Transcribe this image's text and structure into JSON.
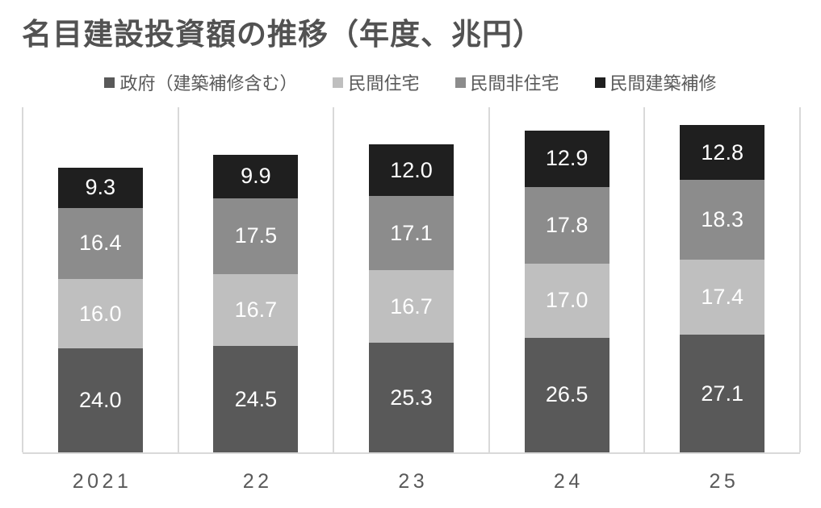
{
  "title": "名目建設投資額の推移（年度、兆円）",
  "chart_data": {
    "type": "bar",
    "stacked": true,
    "title": "名目建設投資額の推移（年度、兆円）",
    "unit": "兆円",
    "categories": [
      "2021",
      "22",
      "23",
      "24",
      "25"
    ],
    "series": [
      {
        "name": "政府（建築補修含む）",
        "color": "#595959",
        "values": [
          24.0,
          24.5,
          25.3,
          26.5,
          27.1
        ]
      },
      {
        "name": "民間住宅",
        "color": "#bfbfbf",
        "values": [
          16.0,
          16.7,
          16.7,
          17.0,
          17.4
        ]
      },
      {
        "name": "民間非住宅",
        "color": "#8c8c8c",
        "values": [
          16.4,
          17.5,
          17.1,
          17.8,
          18.3
        ]
      },
      {
        "name": "民間建築補修",
        "color": "#1f1f1f",
        "values": [
          9.3,
          9.9,
          12.0,
          12.9,
          12.8
        ]
      }
    ],
    "xlabel": "",
    "ylabel": "",
    "ylim": [
      0,
      80
    ],
    "grid": "vertical category separators only",
    "legend_position": "top-center",
    "data_labels": "inside center, one decimal, white",
    "colors": {
      "gridline": "#d9d9d9",
      "axis_line": "#d9d9d9",
      "axis_text": "#595959",
      "title_text": "#525252",
      "background": "#ffffff",
      "value_label_text": "#ffffff"
    }
  }
}
